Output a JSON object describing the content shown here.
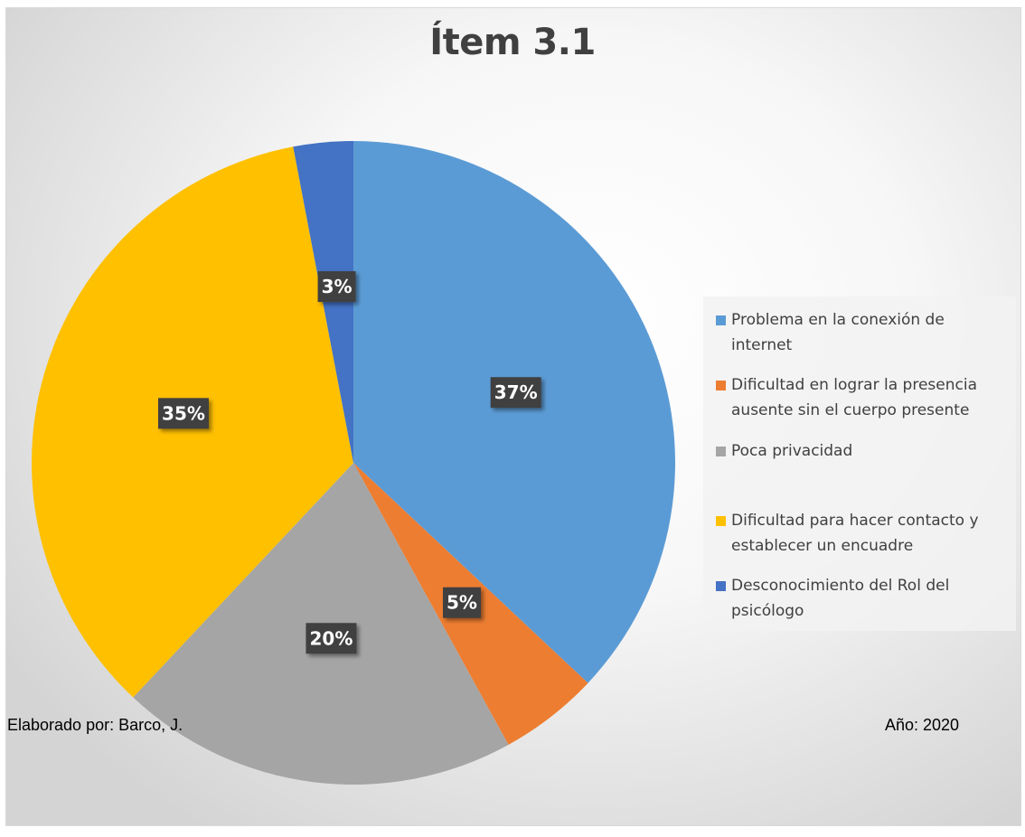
{
  "chart_data": {
    "type": "pie",
    "title": "Ítem 3.1",
    "labels": [
      "Problema en la conexión de internet",
      "Dificultad en lograr la presencia ausente sin el cuerpo presente",
      "Poca privacidad",
      "Dificultad para hacer contacto y establecer un encuadre",
      "Desconocimiento del Rol del psicólogo"
    ],
    "values": [
      37,
      5,
      20,
      35,
      3
    ],
    "value_labels": [
      "37%",
      "5%",
      "20%",
      "35%",
      "3%"
    ],
    "colors": [
      "#5b9bd5",
      "#ed7d31",
      "#a5a5a5",
      "#ffc000",
      "#4472c4"
    ],
    "start_angle_deg": 0,
    "direction": "clockwise",
    "legend_position": "right"
  },
  "legend": {
    "items": [
      {
        "label_line1": "Problema en la conexión de",
        "label_line2": "internet",
        "color": "#5b9bd5"
      },
      {
        "label_line1": "Dificultad en lograr la presencia",
        "label_line2": "ausente sin el cuerpo presente",
        "color": "#ed7d31"
      },
      {
        "label_line1": "Poca privacidad",
        "label_line2": "",
        "color": "#a5a5a5"
      },
      {
        "label_line1": "Dificultad para hacer contacto y",
        "label_line2": "establecer un encuadre",
        "color": "#ffc000"
      },
      {
        "label_line1": "Desconocimiento del Rol del",
        "label_line2": "psicólogo",
        "color": "#4472c4"
      }
    ]
  },
  "footer": {
    "author": "Elaborado  por: Barco, J.",
    "year": "Año: 2020"
  }
}
